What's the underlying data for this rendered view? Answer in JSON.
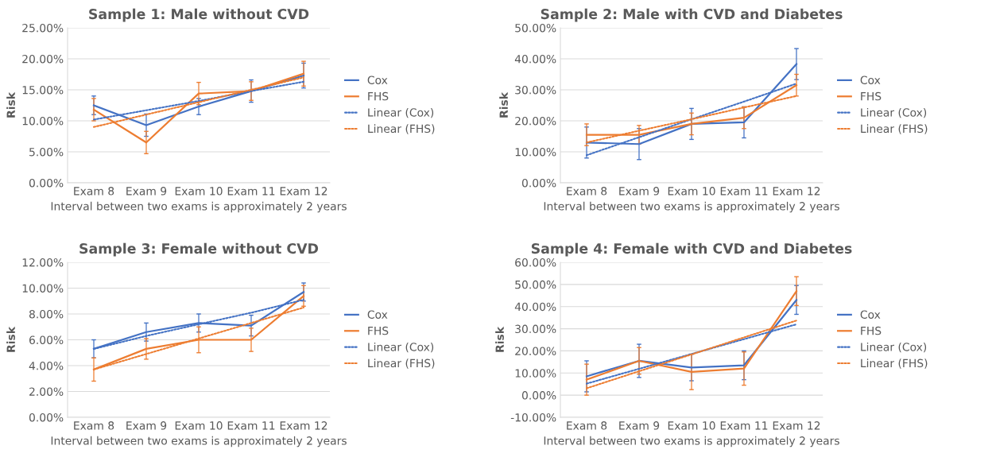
{
  "chart_data": [
    {
      "type": "line",
      "title": "Sample 1: Male without CVD",
      "xlabel": "Interval between two exams is approximately 2 years",
      "ylabel": "Risk",
      "categories": [
        "Exam 8",
        "Exam 9",
        "Exam 10",
        "Exam 11",
        "Exam 12"
      ],
      "series": [
        {
          "name": "Cox",
          "color": "#4472c4",
          "line_style": "solid",
          "values": [
            12.5,
            9.3,
            12.3,
            14.8,
            17.3
          ],
          "errors": [
            1.5,
            1.8,
            1.3,
            1.8,
            2.0
          ]
        },
        {
          "name": "FHS",
          "color": "#ed7d31",
          "line_style": "solid",
          "values": [
            11.8,
            6.5,
            14.4,
            14.8,
            17.6
          ],
          "errors": [
            1.8,
            1.8,
            1.8,
            1.5,
            2.0
          ]
        },
        {
          "name": "Linear (Cox)",
          "color": "#4472c4",
          "line_style": "dotted",
          "values": [
            10.2,
            11.7,
            13.2,
            14.8,
            16.3
          ]
        },
        {
          "name": "Linear (FHS)",
          "color": "#ed7d31",
          "line_style": "dotted",
          "values": [
            9.0,
            11.0,
            13.0,
            15.0,
            17.0
          ]
        }
      ],
      "ylim": [
        0,
        25
      ],
      "yticks": [
        {
          "value": 0,
          "label": "0.00%"
        },
        {
          "value": 5,
          "label": "5.00%"
        },
        {
          "value": 10,
          "label": "10.00%"
        },
        {
          "value": 15,
          "label": "15.00%"
        },
        {
          "value": 20,
          "label": "20.00%"
        },
        {
          "value": 25,
          "label": "25.00%"
        }
      ],
      "grid": "y",
      "legend": "right"
    },
    {
      "type": "line",
      "title": "Sample 2: Male with CVD and Diabetes",
      "xlabel": "Interval between two exams is approximately 2 years",
      "ylabel": "Risk",
      "categories": [
        "Exam 8",
        "Exam 9",
        "Exam 10",
        "Exam 11",
        "Exam 12"
      ],
      "series": [
        {
          "name": "Cox",
          "color": "#4472c4",
          "line_style": "solid",
          "values": [
            13.0,
            12.5,
            19.0,
            19.5,
            38.3
          ],
          "errors": [
            5.0,
            5.0,
            5.0,
            5.0,
            5.0
          ]
        },
        {
          "name": "FHS",
          "color": "#ed7d31",
          "line_style": "solid",
          "values": [
            15.5,
            15.5,
            19.0,
            21.0,
            31.5
          ],
          "errors": [
            3.5,
            3.0,
            3.5,
            3.5,
            3.5
          ]
        },
        {
          "name": "Linear (Cox)",
          "color": "#4472c4",
          "line_style": "dotted",
          "values": [
            8.9,
            14.7,
            20.5,
            26.2,
            32.0
          ]
        },
        {
          "name": "Linear (FHS)",
          "color": "#ed7d31",
          "line_style": "dotted",
          "values": [
            13.0,
            16.8,
            20.5,
            24.3,
            28.0
          ]
        }
      ],
      "ylim": [
        0,
        50
      ],
      "yticks": [
        {
          "value": 0,
          "label": "0.00%"
        },
        {
          "value": 10,
          "label": "10.00%"
        },
        {
          "value": 20,
          "label": "20.00%"
        },
        {
          "value": 30,
          "label": "30.00%"
        },
        {
          "value": 40,
          "label": "40.00%"
        },
        {
          "value": 50,
          "label": "50.00%"
        }
      ],
      "grid": "y",
      "legend": "right"
    },
    {
      "type": "line",
      "title": "Sample 3: Female without CVD",
      "xlabel": "Interval between two exams is approximately 2 years",
      "ylabel": "Risk",
      "categories": [
        "Exam 8",
        "Exam 9",
        "Exam 10",
        "Exam 11",
        "Exam 12"
      ],
      "series": [
        {
          "name": "Cox",
          "color": "#4472c4",
          "line_style": "solid",
          "values": [
            5.3,
            6.6,
            7.3,
            7.1,
            9.7
          ],
          "errors": [
            0.7,
            0.7,
            0.7,
            0.8,
            0.7
          ]
        },
        {
          "name": "FHS",
          "color": "#ed7d31",
          "line_style": "solid",
          "values": [
            3.7,
            5.3,
            6.0,
            6.0,
            9.4
          ],
          "errors": [
            0.9,
            0.8,
            1.0,
            0.9,
            0.8
          ]
        },
        {
          "name": "Linear (Cox)",
          "color": "#4472c4",
          "line_style": "dotted",
          "values": [
            5.3,
            6.3,
            7.2,
            8.1,
            9.1
          ]
        },
        {
          "name": "Linear (FHS)",
          "color": "#ed7d31",
          "line_style": "dotted",
          "values": [
            3.7,
            4.9,
            6.1,
            7.3,
            8.5
          ]
        }
      ],
      "ylim": [
        0,
        12
      ],
      "yticks": [
        {
          "value": 0,
          "label": "0.00%"
        },
        {
          "value": 2,
          "label": "2.00%"
        },
        {
          "value": 4,
          "label": "4.00%"
        },
        {
          "value": 6,
          "label": "6.00%"
        },
        {
          "value": 8,
          "label": "8.00%"
        },
        {
          "value": 10,
          "label": "10.00%"
        },
        {
          "value": 12,
          "label": "12.00%"
        }
      ],
      "grid": "y",
      "legend": "right"
    },
    {
      "type": "line",
      "title": "Sample 4: Female with CVD and Diabetes",
      "xlabel": "Interval between two exams is approximately 2 years",
      "ylabel": "Risk",
      "categories": [
        "Exam 8",
        "Exam 9",
        "Exam 10",
        "Exam 11",
        "Exam 12"
      ],
      "series": [
        {
          "name": "Cox",
          "color": "#4472c4",
          "line_style": "solid",
          "values": [
            8.5,
            15.5,
            12.5,
            13.5,
            43.0
          ],
          "errors": [
            7.0,
            7.5,
            6.0,
            6.5,
            6.5
          ]
        },
        {
          "name": "FHS",
          "color": "#ed7d31",
          "line_style": "solid",
          "values": [
            7.0,
            15.5,
            10.5,
            12.0,
            47.0
          ],
          "errors": [
            7.0,
            6.0,
            8.0,
            7.5,
            6.5
          ]
        },
        {
          "name": "Linear (Cox)",
          "color": "#4472c4",
          "line_style": "dotted",
          "values": [
            5.2,
            11.9,
            18.6,
            25.3,
            32.0
          ]
        },
        {
          "name": "Linear (FHS)",
          "color": "#ed7d31",
          "line_style": "dotted",
          "values": [
            3.1,
            10.8,
            18.4,
            26.1,
            33.7
          ]
        }
      ],
      "ylim": [
        -10,
        60
      ],
      "yticks": [
        {
          "value": -10,
          "label": "-10.00%"
        },
        {
          "value": 0,
          "label": "0.00%"
        },
        {
          "value": 10,
          "label": "10.00%"
        },
        {
          "value": 20,
          "label": "20.00%"
        },
        {
          "value": 30,
          "label": "30.00%"
        },
        {
          "value": 40,
          "label": "40.00%"
        },
        {
          "value": 50,
          "label": "50.00%"
        },
        {
          "value": 60,
          "label": "60.00%"
        }
      ],
      "grid": "y",
      "legend": "right"
    }
  ]
}
